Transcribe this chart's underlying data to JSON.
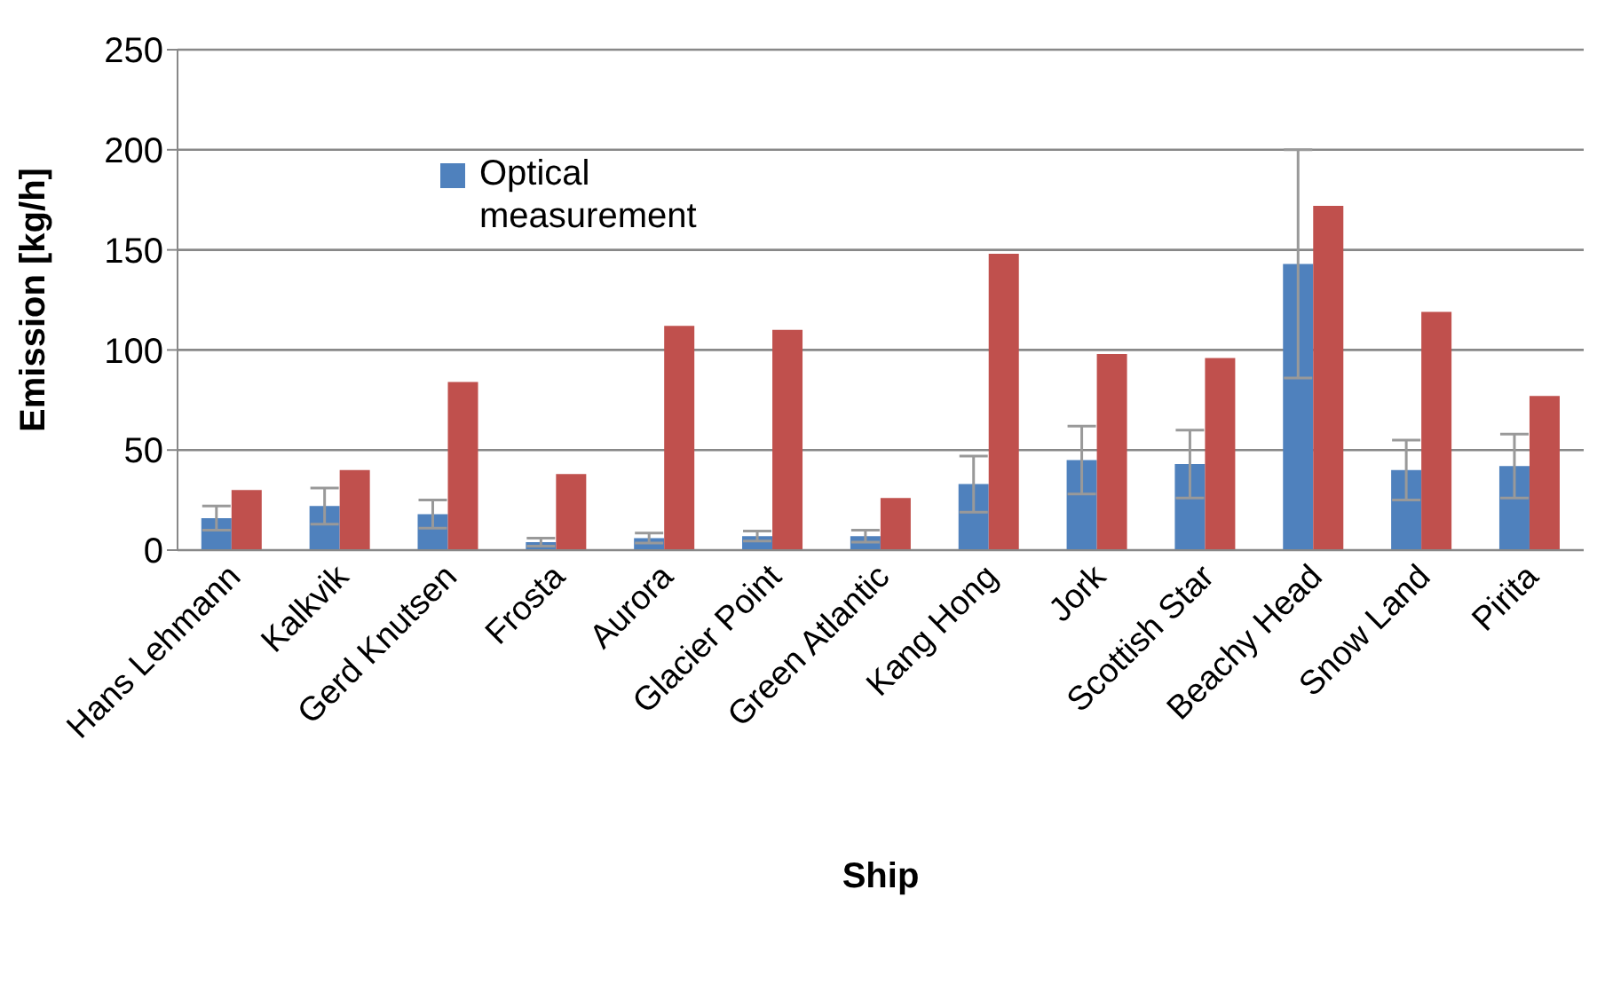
{
  "chart_data": {
    "type": "bar",
    "xlabel": "Ship",
    "ylabel": "Emission [kg/h]",
    "categories": [
      "Hans Lehmann",
      "Kalkvik",
      "Gerd Knutsen",
      "Frosta",
      "Aurora",
      "Glacier Point",
      "Green Atlantic",
      "Kang Hong",
      "Jork",
      "Scottish Star",
      "Beachy Head",
      "Snow Land",
      "Pirita"
    ],
    "series": [
      {
        "name": "Optical measurement",
        "color": "#4f81bd",
        "values": [
          16,
          22,
          18,
          4,
          6,
          7,
          7,
          33,
          45,
          43,
          143,
          40,
          42
        ],
        "errors": [
          6,
          9,
          7,
          2,
          2.5,
          2.5,
          3,
          14,
          17,
          17,
          57,
          15,
          16
        ]
      },
      {
        "color": "#c0504d",
        "values": [
          30,
          40,
          84,
          38,
          112,
          110,
          26,
          148,
          98,
          96,
          172,
          119,
          77
        ]
      }
    ],
    "ylim": [
      0,
      250
    ],
    "yticks": [
      0,
      50,
      100,
      150,
      200,
      250
    ],
    "grid": "y",
    "legend": "top left"
  }
}
